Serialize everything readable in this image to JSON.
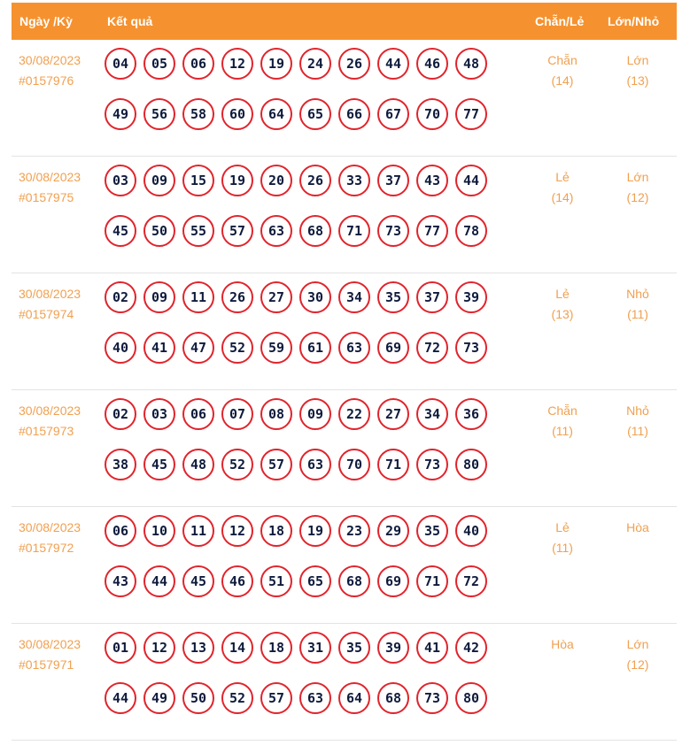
{
  "header": {
    "date": "Ngày /Kỳ",
    "result": "Kết quả",
    "chan_le": "Chẵn/Lẻ",
    "lon_nho": "Lớn/Nhỏ"
  },
  "rows": [
    {
      "date": "30/08/2023",
      "draw": "#0157976",
      "numbers": [
        "04",
        "05",
        "06",
        "12",
        "19",
        "24",
        "26",
        "44",
        "46",
        "48",
        "49",
        "56",
        "58",
        "60",
        "64",
        "65",
        "66",
        "67",
        "70",
        "77"
      ],
      "chan_le": "Chẵn",
      "chan_le_count": "(14)",
      "lon_nho": "Lớn",
      "lon_nho_count": "(13)"
    },
    {
      "date": "30/08/2023",
      "draw": "#0157975",
      "numbers": [
        "03",
        "09",
        "15",
        "19",
        "20",
        "26",
        "33",
        "37",
        "43",
        "44",
        "45",
        "50",
        "55",
        "57",
        "63",
        "68",
        "71",
        "73",
        "77",
        "78"
      ],
      "chan_le": "Lẻ",
      "chan_le_count": "(14)",
      "lon_nho": "Lớn",
      "lon_nho_count": "(12)"
    },
    {
      "date": "30/08/2023",
      "draw": "#0157974",
      "numbers": [
        "02",
        "09",
        "11",
        "26",
        "27",
        "30",
        "34",
        "35",
        "37",
        "39",
        "40",
        "41",
        "47",
        "52",
        "59",
        "61",
        "63",
        "69",
        "72",
        "73"
      ],
      "chan_le": "Lẻ",
      "chan_le_count": "(13)",
      "lon_nho": "Nhỏ",
      "lon_nho_count": "(11)"
    },
    {
      "date": "30/08/2023",
      "draw": "#0157973",
      "numbers": [
        "02",
        "03",
        "06",
        "07",
        "08",
        "09",
        "22",
        "27",
        "34",
        "36",
        "38",
        "45",
        "48",
        "52",
        "57",
        "63",
        "70",
        "71",
        "73",
        "80"
      ],
      "chan_le": "Chẵn",
      "chan_le_count": "(11)",
      "lon_nho": "Nhỏ",
      "lon_nho_count": "(11)"
    },
    {
      "date": "30/08/2023",
      "draw": "#0157972",
      "numbers": [
        "06",
        "10",
        "11",
        "12",
        "18",
        "19",
        "23",
        "29",
        "35",
        "40",
        "43",
        "44",
        "45",
        "46",
        "51",
        "65",
        "68",
        "69",
        "71",
        "72"
      ],
      "chan_le": "Lẻ",
      "chan_le_count": "(11)",
      "lon_nho": "Hòa",
      "lon_nho_count": ""
    },
    {
      "date": "30/08/2023",
      "draw": "#0157971",
      "numbers": [
        "01",
        "12",
        "13",
        "14",
        "18",
        "31",
        "35",
        "39",
        "41",
        "42",
        "44",
        "49",
        "50",
        "52",
        "57",
        "63",
        "64",
        "68",
        "73",
        "80"
      ],
      "chan_le": "Hòa",
      "chan_le_count": "",
      "lon_nho": "Lớn",
      "lon_nho_count": "(12)"
    }
  ],
  "colors": {
    "header_bg": "#F5922F",
    "accent_text": "#F0A050",
    "ball_border": "#E0242C",
    "ball_text": "#0F1B3C"
  }
}
